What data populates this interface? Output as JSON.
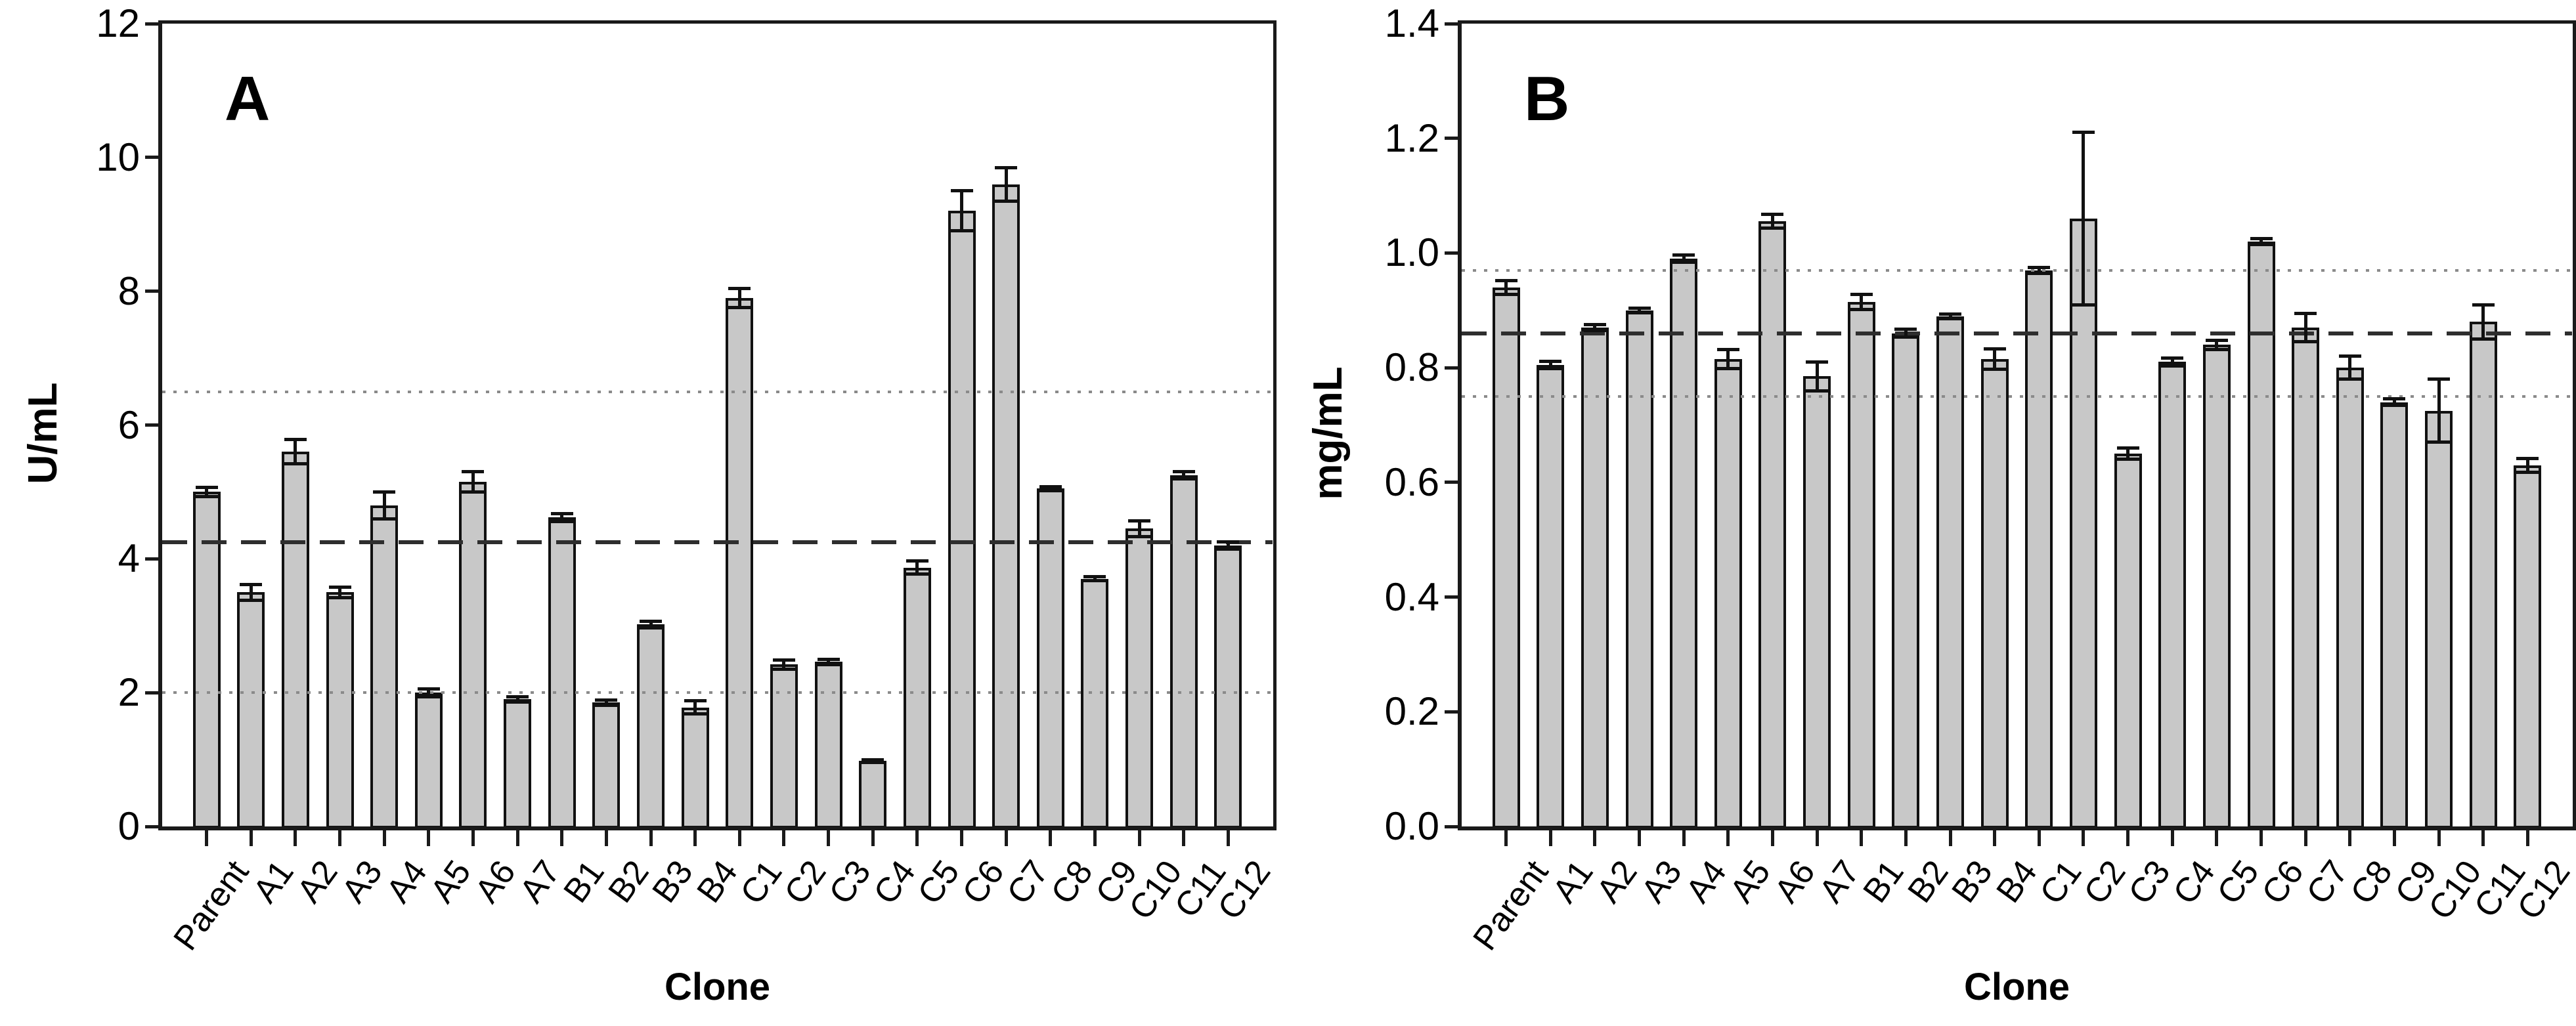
{
  "figure": {
    "background": "#ffffff",
    "bar_fill": "#c8c8c8",
    "bar_stroke": "#111111",
    "axis_color": "#1a1a1a",
    "dashed_line_color": "#2e2e2e",
    "dotted_line_color": "#8a8a8a",
    "xlabel": "Clone"
  },
  "chart_data": [
    {
      "type": "bar",
      "panel": "A",
      "xlabel": "Clone",
      "ylabel": "U/mL",
      "ylim": [
        0,
        12
      ],
      "ytick_values": [
        0,
        2,
        4,
        6,
        8,
        10,
        12
      ],
      "ytick_labels": [
        "0",
        "2",
        "4",
        "6",
        "8",
        "10",
        "12"
      ],
      "grid": false,
      "legend": null,
      "ref_lines": {
        "dashed": 4.25,
        "dotted": [
          6.5,
          2.0
        ]
      },
      "categories": [
        "Parent",
        "A1",
        "A2",
        "A3",
        "A4",
        "A5",
        "A6",
        "A7",
        "B1",
        "B2",
        "B3",
        "B4",
        "C1",
        "C2",
        "C3",
        "C4",
        "C5",
        "C6",
        "C7",
        "C8",
        "C9",
        "C10",
        "C11",
        "C12"
      ],
      "values": [
        5.0,
        3.5,
        5.6,
        3.5,
        4.8,
        2.0,
        5.15,
        1.9,
        4.62,
        1.85,
        3.02,
        1.78,
        7.9,
        2.42,
        2.46,
        0.98,
        3.87,
        9.2,
        9.6,
        5.05,
        3.7,
        4.45,
        5.25,
        4.2
      ],
      "errors": [
        0.07,
        0.12,
        0.18,
        0.08,
        0.2,
        0.06,
        0.15,
        0.04,
        0.06,
        0.04,
        0.05,
        0.1,
        0.14,
        0.07,
        0.04,
        0.02,
        0.1,
        0.3,
        0.25,
        0.03,
        0.03,
        0.12,
        0.05,
        0.05
      ]
    },
    {
      "type": "bar",
      "panel": "B",
      "xlabel": "Clone",
      "ylabel": "mg/mL",
      "ylim": [
        0,
        1.4
      ],
      "ytick_values": [
        0,
        0.2,
        0.4,
        0.6,
        0.8,
        1.0,
        1.2,
        1.4
      ],
      "ytick_labels": [
        "0.0",
        "0.2",
        "0.4",
        "0.6",
        "0.8",
        "1.0",
        "1.2",
        "1.4"
      ],
      "grid": false,
      "legend": null,
      "ref_lines": {
        "dashed": 0.86,
        "dotted": [
          0.97,
          0.75
        ]
      },
      "categories": [
        "Parent",
        "A1",
        "A2",
        "A3",
        "A4",
        "A5",
        "A6",
        "A7",
        "B1",
        "B2",
        "B3",
        "B4",
        "C1",
        "C2",
        "C3",
        "C4",
        "C5",
        "C6",
        "C7",
        "C8",
        "C9",
        "C10",
        "C11",
        "C12"
      ],
      "values": [
        0.94,
        0.805,
        0.87,
        0.9,
        0.99,
        0.815,
        1.055,
        0.785,
        0.915,
        0.86,
        0.89,
        0.815,
        0.97,
        1.06,
        0.65,
        0.81,
        0.84,
        1.02,
        0.87,
        0.8,
        0.74,
        0.725,
        0.88,
        0.63
      ],
      "errors": [
        0.012,
        0.006,
        0.005,
        0.004,
        0.006,
        0.017,
        0.012,
        0.025,
        0.013,
        0.007,
        0.004,
        0.018,
        0.005,
        0.15,
        0.01,
        0.007,
        0.008,
        0.005,
        0.025,
        0.02,
        0.006,
        0.055,
        0.03,
        0.012
      ]
    }
  ]
}
